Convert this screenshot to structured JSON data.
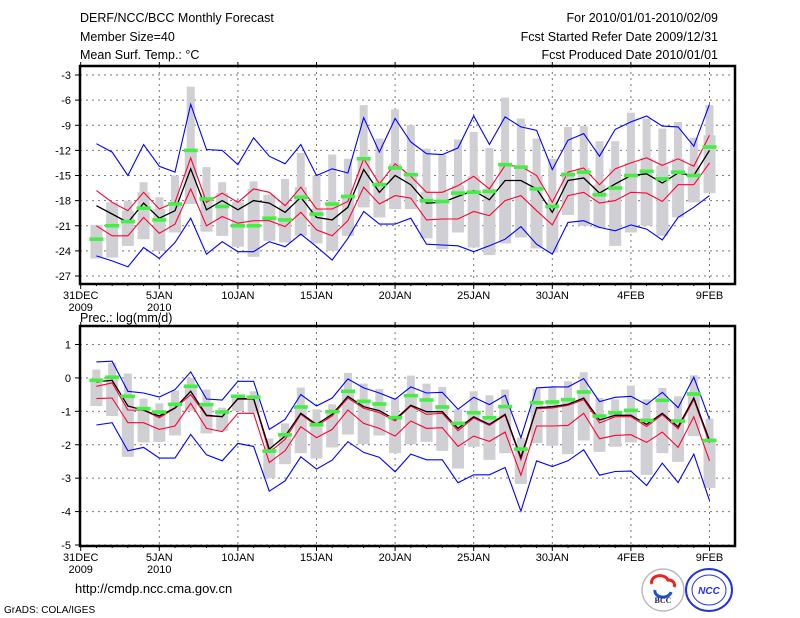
{
  "header": {
    "title": "DERF/NCC/BCC Monthly Forecast",
    "member_size": "Member Size=40",
    "variable_top": "Mean Surf. Temp.: °C",
    "for_range": "For 2010/01/01-2010/02/09",
    "started": "Fcst Started Refer Date 2009/12/31",
    "produced": "Fcst Produced Date 2010/01/01"
  },
  "footer": {
    "url": "http://cmdp.ncc.cma.gov.cn",
    "grads": "GrADS: COLA/IGES",
    "logo_bcc": "BCC",
    "logo_ncc": "NCC"
  },
  "colors": {
    "max_min": "#0000ff",
    "spread": "#ff0033",
    "mean": "#000000",
    "median": "#44ee44",
    "box": "#d0d0d4"
  },
  "chart_data": [
    {
      "type": "line",
      "title": "Mean Surf. Temp.: °C",
      "ylabel": "",
      "ylim": [
        -28,
        -2
      ],
      "yticks": [
        "-3",
        "-6",
        "-9",
        "-12",
        "-15",
        "-18",
        "-21",
        "-24",
        "-27"
      ],
      "ytick_values": [
        -3,
        -6,
        -9,
        -12,
        -15,
        -18,
        -21,
        -24,
        -27
      ],
      "xlim": [
        0,
        41
      ],
      "xticks": [
        {
          "day": 0,
          "label": "31DEC",
          "sub": "2009"
        },
        {
          "day": 5,
          "label": "5JAN",
          "sub": "2010"
        },
        {
          "day": 10,
          "label": "10JAN"
        },
        {
          "day": 15,
          "label": "15JAN"
        },
        {
          "day": 20,
          "label": "20JAN"
        },
        {
          "day": 25,
          "label": "25JAN"
        },
        {
          "day": 30,
          "label": "30JAN"
        },
        {
          "day": 35,
          "label": "4FEB"
        },
        {
          "day": 40,
          "label": "9FEB"
        }
      ],
      "grid": true,
      "series": [
        {
          "name": "max",
          "values": [
            -11.2,
            -12.2,
            -15,
            -11.3,
            -13.9,
            -14.6,
            -6.5,
            -11.9,
            -12,
            -13.7,
            -10.5,
            -12.7,
            -13.6,
            -11.3,
            -15,
            -14.2,
            -14.7,
            -8.1,
            -12.2,
            -8.2,
            -11,
            -12.4,
            -12.5,
            -11.7,
            -7.9,
            -11.3,
            -8,
            -9.2,
            -9.6,
            -14.3,
            -10.8,
            -10,
            -12.7,
            -9.5,
            -8.6,
            -7.9,
            -9.1,
            -9.2,
            -11.5,
            -6.5
          ]
        },
        {
          "name": "upper",
          "values": [
            -16.8,
            -18.2,
            -19.2,
            -17,
            -19,
            -18.2,
            -12.9,
            -18.2,
            -17.1,
            -18.2,
            -16.6,
            -17,
            -18.6,
            -16.4,
            -19,
            -19,
            -18.1,
            -13,
            -16,
            -13.6,
            -15.1,
            -17,
            -17,
            -16.2,
            -15.1,
            -16.6,
            -13.8,
            -13.9,
            -15,
            -18.2,
            -14.6,
            -14.1,
            -16.1,
            -14.2,
            -13.5,
            -12.9,
            -13.8,
            -13,
            -13.9,
            -10.2
          ]
        },
        {
          "name": "mean",
          "values": [
            -18.6,
            -19.6,
            -20.6,
            -18.3,
            -20.1,
            -19.2,
            -14.2,
            -19.1,
            -18,
            -19.1,
            -18,
            -18.3,
            -19.4,
            -17.6,
            -20,
            -20.3,
            -18.8,
            -14.3,
            -17,
            -15,
            -16.1,
            -18.3,
            -18.2,
            -17.5,
            -16.8,
            -17.9,
            -15.6,
            -15.6,
            -16.6,
            -19.4,
            -15.6,
            -15.3,
            -17.1,
            -16,
            -15,
            -14.8,
            -15.9,
            -14.7,
            -15,
            -12
          ]
        },
        {
          "name": "lower",
          "values": [
            -21,
            -22.2,
            -22.2,
            -20,
            -21.9,
            -20.8,
            -16.6,
            -21,
            -19.9,
            -20.7,
            -20.4,
            -20.4,
            -21.1,
            -19.4,
            -21.5,
            -22.2,
            -20.4,
            -16.4,
            -18.4,
            -17.4,
            -17.7,
            -20.3,
            -20.2,
            -20.2,
            -19.3,
            -19.8,
            -18,
            -17.4,
            -19.2,
            -20.9,
            -17.4,
            -17,
            -18.3,
            -18,
            -17,
            -17.1,
            -18.1,
            -16.1,
            -16.1,
            -13.5
          ]
        },
        {
          "name": "min",
          "values": [
            -24.6,
            -25.2,
            -25.9,
            -23.6,
            -24.9,
            -23,
            -20.1,
            -24.4,
            -22.9,
            -24.1,
            -24.1,
            -22.9,
            -23.5,
            -22,
            -23.5,
            -25.1,
            -22.5,
            -19.3,
            -20.8,
            -20.8,
            -20.1,
            -23.2,
            -23.3,
            -23.4,
            -24.1,
            -23.4,
            -22.6,
            -21.1,
            -23.2,
            -24.4,
            -20.6,
            -20.4,
            -21.2,
            -21.6,
            -20.9,
            -21.4,
            -22.7,
            -20,
            -18.8,
            -17.4
          ]
        },
        {
          "name": "median",
          "values": [
            -22.6,
            -21,
            -20.5,
            -18.9,
            -20.3,
            -18.4,
            -12,
            -17.8,
            -18.7,
            -21,
            -21,
            -20.1,
            -20.3,
            -17.6,
            -19.6,
            -18.4,
            -17.5,
            -13,
            -16.1,
            -14.1,
            -14.9,
            -18,
            -18.1,
            -17.1,
            -17,
            -16.9,
            -13.7,
            -14,
            -16.6,
            -18.7,
            -14.9,
            -14.6,
            -17.3,
            -16.5,
            -15,
            -14.5,
            -15.4,
            -14.6,
            -15,
            -11.6
          ]
        }
      ],
      "box_top": [
        -20.9,
        -18.2,
        -18,
        -15.8,
        -17.6,
        -15,
        -4.4,
        -14,
        -15.8,
        -18,
        -15.7,
        -17.3,
        -15.4,
        -12.3,
        -15,
        -12.5,
        -13,
        -6.6,
        -10.6,
        -7.1,
        -9,
        -11.8,
        -12.5,
        -10.7,
        -9.8,
        -11.7,
        -5.7,
        -8.2,
        -10.6,
        -13,
        -9.2,
        -9.1,
        -10.9,
        -10.9,
        -7.5,
        -8.2,
        -9.4,
        -8.6,
        -10.5,
        -6.6
      ],
      "box_bottom": [
        -24.9,
        -24.8,
        -23.4,
        -22.6,
        -24,
        -21.8,
        -18.4,
        -21.7,
        -22.2,
        -23.5,
        -24.7,
        -22.8,
        -23,
        -22.2,
        -23.1,
        -24,
        -22.2,
        -18.8,
        -20,
        -19,
        -19,
        -22.5,
        -23.8,
        -21.8,
        -23.6,
        -24.5,
        -23.1,
        -22.4,
        -23.7,
        -24.2,
        -19.7,
        -21,
        -21.3,
        -23.4,
        -21.8,
        -21,
        -22.2,
        -20,
        -18.2,
        -17.1
      ]
    },
    {
      "type": "line",
      "title": "Prec.: log(mm/d)",
      "ylabel": "",
      "ylim": [
        -5,
        1.3
      ],
      "yticks": [
        "1",
        "0",
        "-1",
        "-2",
        "-3",
        "-4",
        "-5"
      ],
      "ytick_values": [
        1,
        0,
        -1,
        -2,
        -3,
        -4,
        -5
      ],
      "xlim": [
        0,
        41
      ],
      "xticks": [
        {
          "day": 0,
          "label": "31DEC",
          "sub": "2009"
        },
        {
          "day": 5,
          "label": "5JAN",
          "sub": "2010"
        },
        {
          "day": 10,
          "label": "10JAN"
        },
        {
          "day": 15,
          "label": "15JAN"
        },
        {
          "day": 20,
          "label": "20JAN"
        },
        {
          "day": 25,
          "label": "25JAN"
        },
        {
          "day": 30,
          "label": "30JAN"
        },
        {
          "day": 35,
          "label": "4FEB"
        },
        {
          "day": 40,
          "label": "9FEB"
        }
      ],
      "grid": true,
      "series": [
        {
          "name": "max",
          "values": [
            0.48,
            0.5,
            -0.4,
            -0.45,
            -0.57,
            -0.35,
            0.18,
            -0.63,
            -0.66,
            -0.1,
            -0.1,
            -1.54,
            -1.24,
            -0.5,
            -0.84,
            -0.6,
            -0.03,
            -0.3,
            -0.45,
            -0.64,
            -0.27,
            -0.45,
            -0.43,
            -0.94,
            -0.58,
            -0.8,
            -0.52,
            -1.79,
            -0.3,
            -0.27,
            -0.27,
            -0.02,
            -0.71,
            -0.58,
            -0.55,
            -0.8,
            -0.43,
            -0.89,
            0.02,
            -1.24
          ]
        },
        {
          "name": "upper",
          "values": [
            -0.25,
            -0.15,
            -0.96,
            -0.97,
            -1.19,
            -0.91,
            -0.5,
            -1.14,
            -1.16,
            -0.64,
            -0.64,
            -2.23,
            -1.84,
            -1.09,
            -1.44,
            -1.14,
            -0.6,
            -0.91,
            -1.04,
            -1.29,
            -0.84,
            -1.09,
            -1.06,
            -1.58,
            -1.2,
            -1.42,
            -1.12,
            -2.45,
            -0.92,
            -0.9,
            -0.82,
            -0.65,
            -1.35,
            -1.16,
            -1.16,
            -1.45,
            -1.1,
            -1.52,
            -0.65,
            -1.95
          ]
        },
        {
          "name": "mean",
          "values": [
            -0.12,
            -0.07,
            -0.84,
            -0.97,
            -1.14,
            -0.9,
            -0.4,
            -1.12,
            -1.16,
            -0.62,
            -0.62,
            -2.13,
            -1.74,
            -1.06,
            -1.39,
            -1.09,
            -0.55,
            -0.86,
            -0.98,
            -1.24,
            -0.82,
            -1.01,
            -1.01,
            -1.51,
            -1.16,
            -1.39,
            -1.09,
            -2.38,
            -0.89,
            -0.86,
            -0.79,
            -0.6,
            -1.26,
            -1.12,
            -1.12,
            -1.39,
            -1.06,
            -1.46,
            -0.6,
            -1.87
          ]
        },
        {
          "name": "lower",
          "values": [
            -0.62,
            -0.6,
            -1.34,
            -1.34,
            -1.54,
            -1.44,
            -0.76,
            -1.51,
            -1.61,
            -1.06,
            -1.06,
            -2.53,
            -2.18,
            -1.46,
            -1.79,
            -1.54,
            -0.96,
            -1.36,
            -1.51,
            -1.74,
            -1.29,
            -1.51,
            -1.49,
            -2.05,
            -1.74,
            -1.9,
            -1.62,
            -2.91,
            -1.44,
            -1.44,
            -1.42,
            -1.06,
            -1.82,
            -1.72,
            -1.7,
            -1.93,
            -1.62,
            -2.08,
            -1.16,
            -2.48
          ]
        },
        {
          "name": "min",
          "values": [
            -1.41,
            -1.34,
            -2.18,
            -2.08,
            -2.4,
            -2.4,
            -1.69,
            -2.3,
            -2.48,
            -1.96,
            -2.05,
            -3.39,
            -3.08,
            -2.36,
            -2.73,
            -2.46,
            -1.91,
            -2.23,
            -2.38,
            -2.81,
            -2.28,
            -2.45,
            -2.45,
            -3.14,
            -2.9,
            -2.9,
            -2.68,
            -3.99,
            -2.48,
            -2.65,
            -2.48,
            -2.15,
            -2.91,
            -2.8,
            -2.79,
            -3.22,
            -2.55,
            -3.13,
            -2.28,
            -3.67
          ]
        },
        {
          "name": "median",
          "values": [
            -0.07,
            0.02,
            -0.55,
            -0.92,
            -1.02,
            -0.79,
            -0.25,
            -0.8,
            -1.02,
            -0.55,
            -0.58,
            -2.19,
            -1.7,
            -0.87,
            -1.4,
            -1.01,
            -0.4,
            -0.7,
            -0.78,
            -1.19,
            -0.53,
            -0.66,
            -0.87,
            -1.36,
            -1.04,
            -1.19,
            -0.86,
            -2.13,
            -0.74,
            -0.72,
            -0.65,
            -0.42,
            -1.14,
            -1.04,
            -0.97,
            -1.27,
            -0.67,
            -1.29,
            -0.48,
            -1.87
          ]
        }
      ],
      "box_top": [
        0.25,
        0.45,
        0.13,
        -0.62,
        -0.76,
        -0.38,
        0,
        -0.35,
        -0.89,
        -0.5,
        -0.4,
        -1.81,
        -1.36,
        -0.29,
        -0.94,
        -0.79,
        0.15,
        -0.17,
        -0.33,
        -0.6,
        0.07,
        -0.17,
        -0.27,
        -0.94,
        -0.4,
        -0.52,
        -0.35,
        -1.79,
        -0.32,
        -0.27,
        -0.1,
        0.17,
        -0.6,
        -0.64,
        -0.23,
        -0.64,
        -0.3,
        -0.55,
        0.08,
        -1.22
      ],
      "box_bottom": [
        -0.84,
        -1.14,
        -2.36,
        -1.93,
        -1.91,
        -1.72,
        -0.98,
        -1.66,
        -1.59,
        -0.99,
        -1.04,
        -3,
        -2.58,
        -2.25,
        -2.41,
        -2.08,
        -1.69,
        -1.98,
        -1.72,
        -2.25,
        -1.98,
        -1.91,
        -2.18,
        -2.71,
        -2.06,
        -2.45,
        -2.25,
        -3.17,
        -1.95,
        -2.03,
        -2.28,
        -1.87,
        -2.21,
        -2.06,
        -1.93,
        -2.9,
        -2.25,
        -2.51,
        -1.74,
        -3.29
      ]
    }
  ]
}
